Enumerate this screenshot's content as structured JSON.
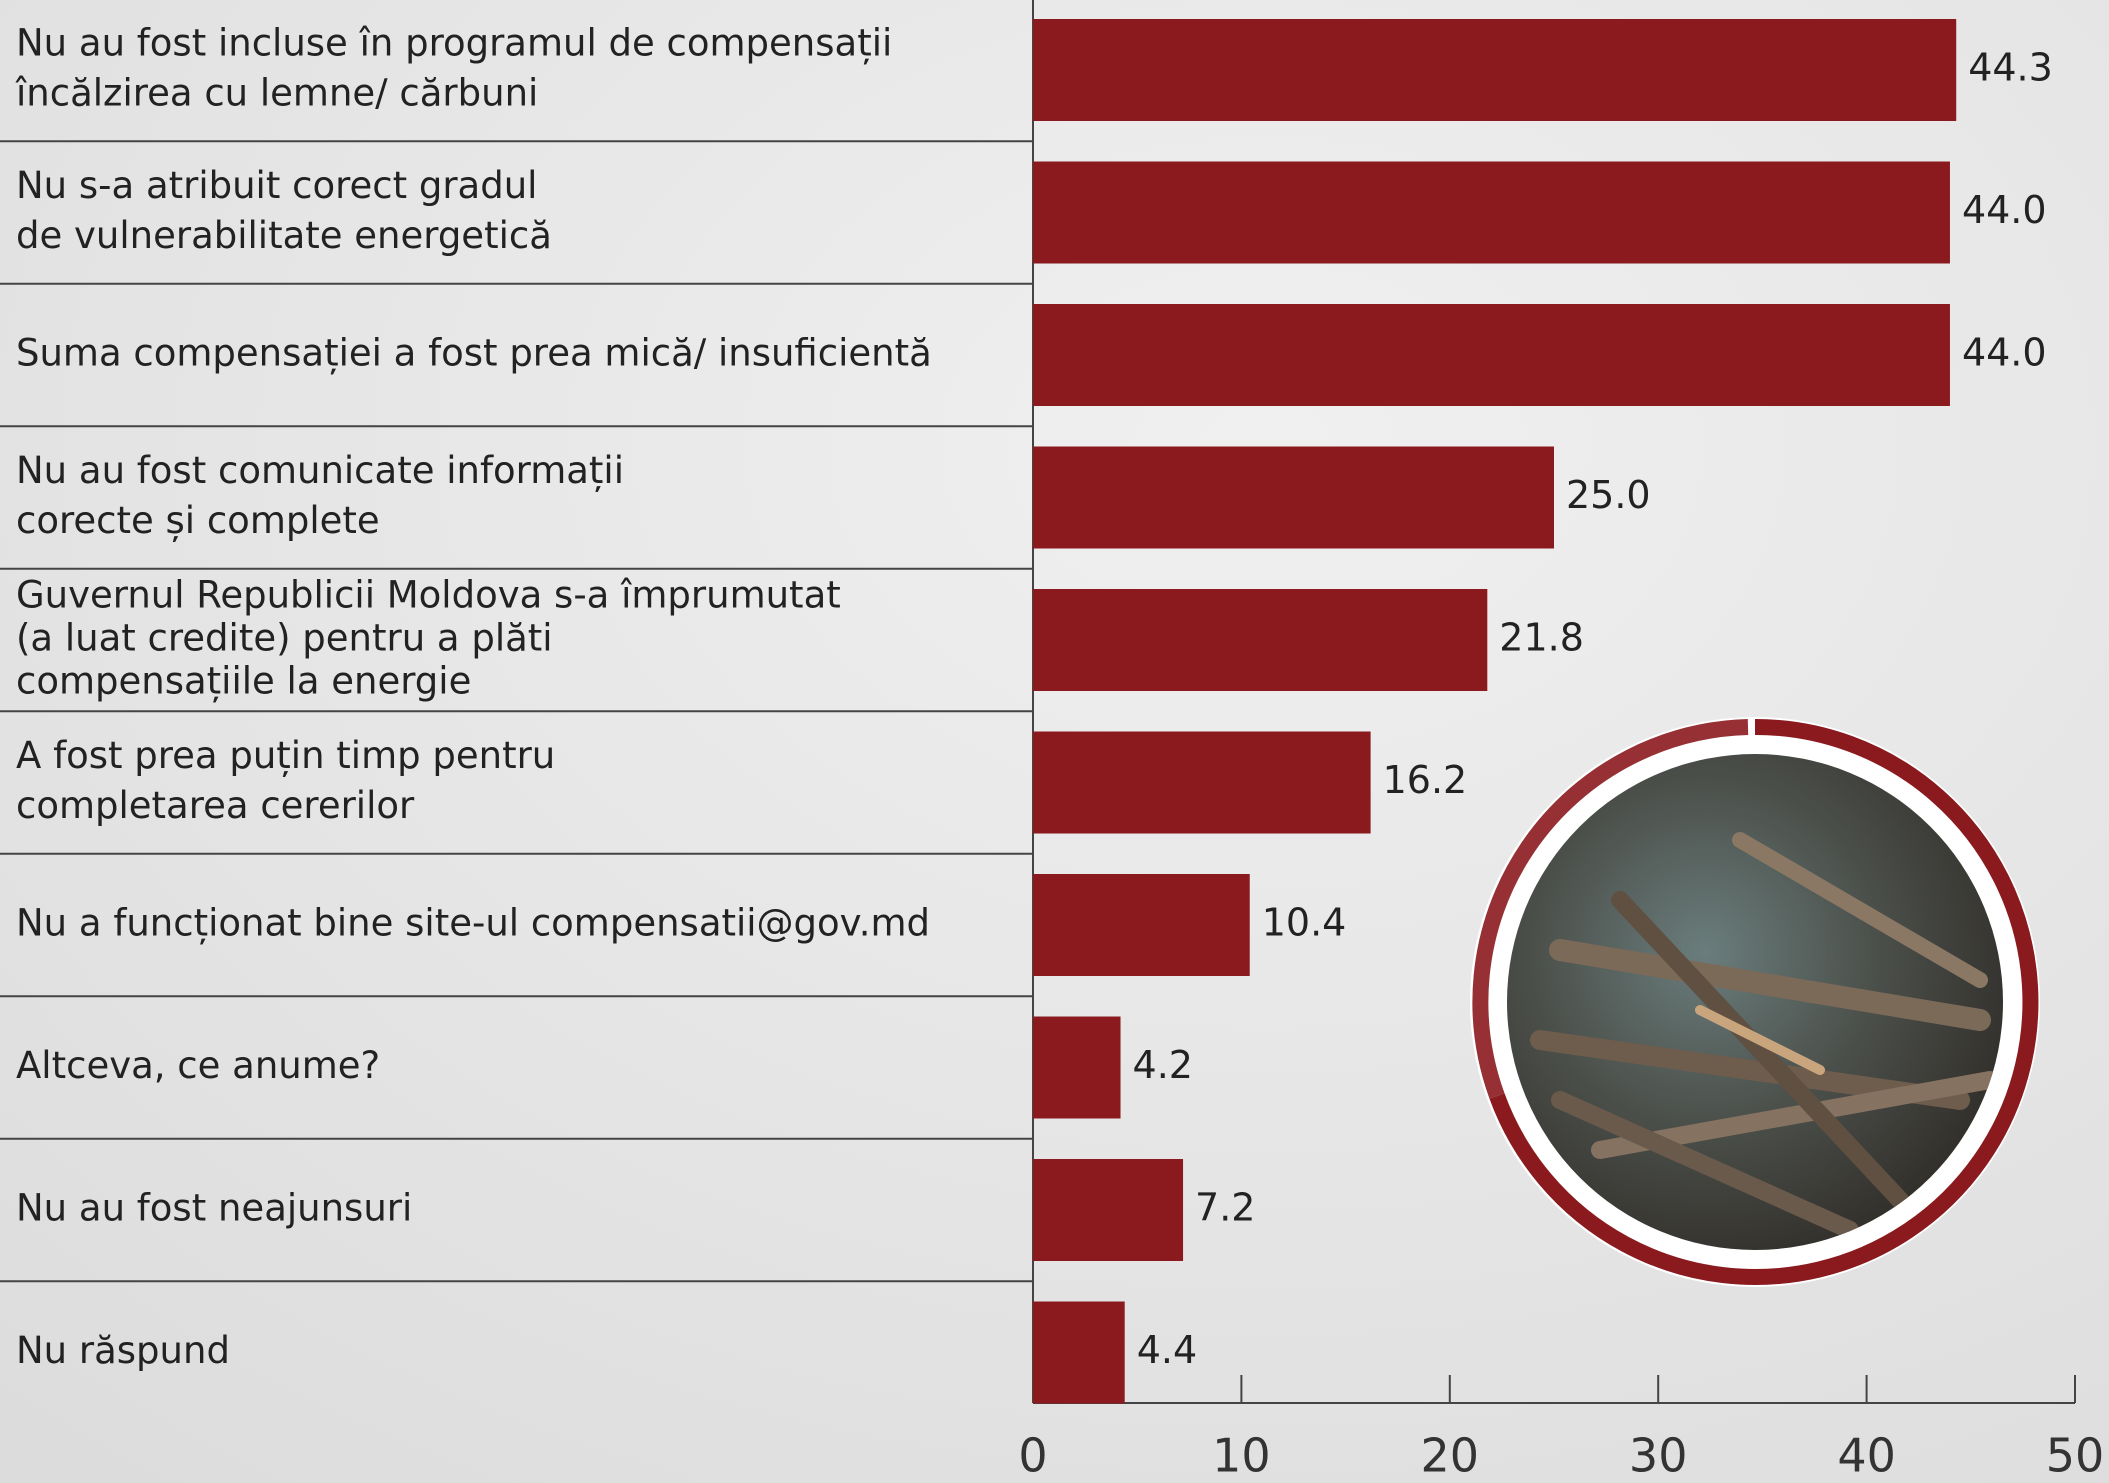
{
  "chart_data": {
    "type": "bar",
    "orientation": "horizontal",
    "categories": [
      [
        "Nu au fost incluse în programul de compensații",
        "încălzirea cu lemne/ cărbuni"
      ],
      [
        "Nu s-a atribuit corect gradul",
        "de vulnerabilitate energetică"
      ],
      [
        "Suma compensației a fost prea mică/ insuficientă"
      ],
      [
        "Nu au fost comunicate informații",
        "corecte și complete"
      ],
      [
        "Guvernul Republicii Moldova s-a împrumutat",
        "(a luat credite) pentru a plăti",
        "compensațiile la energie"
      ],
      [
        "A fost prea puțin timp pentru",
        "completarea cererilor"
      ],
      [
        "Nu a funcționat bine site-ul compensatii@gov.md"
      ],
      [
        "Altceva, ce anume?"
      ],
      [
        "Nu au fost neajunsuri"
      ],
      [
        "Nu răspund"
      ]
    ],
    "values": [
      44.3,
      44.0,
      44.0,
      25.0,
      21.8,
      16.2,
      10.4,
      4.2,
      7.2,
      4.4
    ],
    "value_labels": [
      "44.3",
      "44.0",
      "44.0",
      "25.0",
      "21.8",
      "16.2",
      "10.4",
      "4.2",
      "7.2",
      "4.4"
    ],
    "color": "#8b1a1f",
    "xlim": [
      0,
      50
    ],
    "xticks": [
      0,
      10,
      20,
      30,
      40,
      50
    ]
  }
}
